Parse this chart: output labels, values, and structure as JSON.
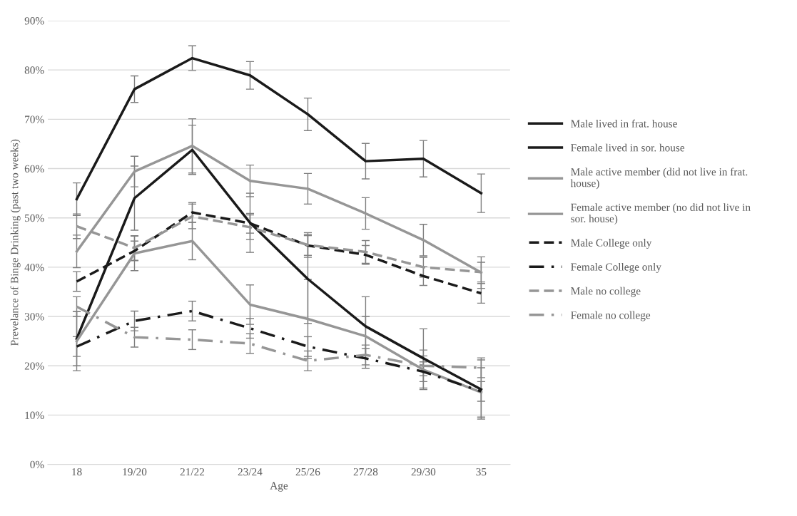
{
  "chart_data": {
    "type": "line",
    "xlabel": "Age",
    "ylabel": "Prevelance of Binge Drinking (past two weeks)",
    "categories": [
      "18",
      "19/20",
      "21/22",
      "23/24",
      "25/26",
      "27/28",
      "29/30",
      "35"
    ],
    "ylim": [
      0,
      90
    ],
    "yticks": [
      {
        "value": 0,
        "label": "0%"
      },
      {
        "value": 10,
        "label": "10%"
      },
      {
        "value": 20,
        "label": "20%"
      },
      {
        "value": 30,
        "label": "30%"
      },
      {
        "value": 40,
        "label": "40%"
      },
      {
        "value": 50,
        "label": "50%"
      },
      {
        "value": 60,
        "label": "60%"
      },
      {
        "value": 70,
        "label": "70%"
      },
      {
        "value": 80,
        "label": "80%"
      },
      {
        "value": 90,
        "label": "90%"
      }
    ],
    "grid": "y",
    "legend": "right",
    "marker": "none",
    "series": [
      {
        "name": "Male lived in frat. house",
        "color": "#1a1a1a",
        "line_style": "solid",
        "values": [
          53.8,
          76.1,
          82.4,
          78.9,
          71.0,
          61.5,
          62.0,
          55.0
        ],
        "errors": [
          3.3,
          2.7,
          2.5,
          2.8,
          3.3,
          3.6,
          3.7,
          3.9
        ]
      },
      {
        "name": "Female lived in sor. house",
        "color": "#1a1a1a",
        "line_style": "solid",
        "values": [
          25.5,
          54.0,
          63.8,
          49.0,
          37.6,
          28.0,
          21.5,
          15.2
        ],
        "errors": [
          5.5,
          6.5,
          5.0,
          6.0,
          9.0,
          6.0,
          6.0,
          6.0
        ]
      },
      {
        "name": "Male active member (did not live in frat. house)",
        "color": "#969696",
        "line_style": "solid",
        "values": [
          43.2,
          59.4,
          64.6,
          57.5,
          55.9,
          50.9,
          45.5,
          38.9
        ],
        "errors": [
          3.3,
          3.1,
          5.5,
          3.2,
          3.1,
          3.2,
          3.2,
          3.2
        ]
      },
      {
        "name": "Female active member (no did not live in sor. house)",
        "color": "#969696",
        "line_style": "solid",
        "values": [
          25.0,
          42.8,
          45.3,
          32.4,
          29.5,
          26.0,
          19.2,
          14.6
        ],
        "errors": [
          6.0,
          3.5,
          3.8,
          4.0,
          8.0,
          4.0,
          4.0,
          5.0
        ]
      },
      {
        "name": "Male College only",
        "color": "#1a1a1a",
        "line_style": "dashed",
        "values": [
          37.1,
          43.3,
          51.1,
          48.9,
          44.4,
          42.5,
          38.2,
          34.7
        ],
        "errors": [
          2.0,
          2.0,
          2.0,
          2.0,
          2.0,
          1.9,
          1.9,
          2.0
        ]
      },
      {
        "name": "Female College only",
        "color": "#1a1a1a",
        "line_style": "dotted",
        "values": [
          23.9,
          29.1,
          31.1,
          27.6,
          23.9,
          21.5,
          18.8,
          14.8
        ],
        "errors": [
          2.0,
          2.0,
          2.0,
          2.0,
          2.0,
          2.0,
          2.0,
          2.0
        ]
      },
      {
        "name": "Male no college",
        "color": "#969696",
        "line_style": "dashed",
        "values": [
          48.3,
          43.9,
          50.3,
          48.1,
          44.5,
          43.1,
          40.0,
          39.0
        ],
        "errors": [
          2.5,
          2.5,
          2.5,
          2.5,
          2.5,
          2.3,
          2.0,
          2.0
        ]
      },
      {
        "name": "Female no college",
        "color": "#969696",
        "line_style": "dotted",
        "values": [
          32.0,
          25.8,
          25.3,
          24.5,
          21.0,
          22.2,
          20.0,
          19.6
        ],
        "errors": [
          2.0,
          2.0,
          2.0,
          2.0,
          2.0,
          2.0,
          2.0,
          2.0
        ]
      }
    ]
  }
}
